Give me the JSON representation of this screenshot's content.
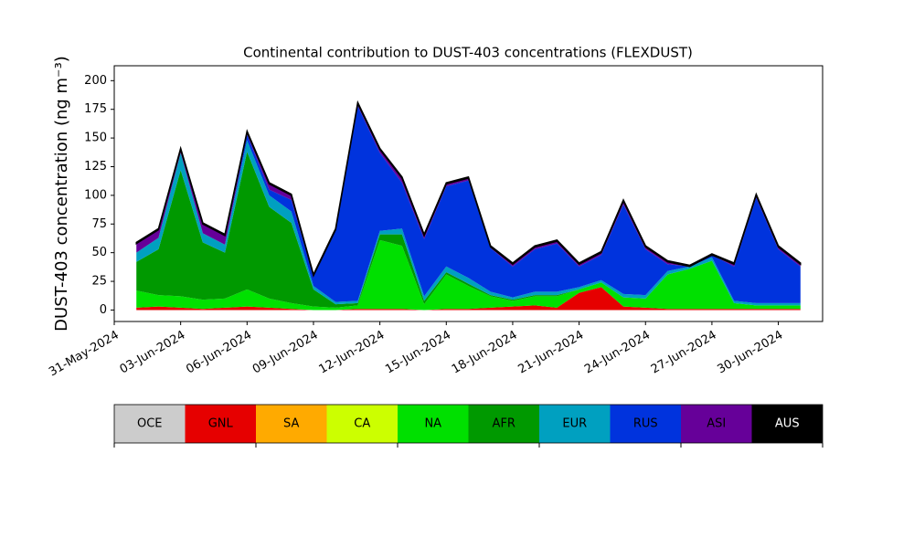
{
  "chart_data": {
    "type": "stacked_area",
    "title": "Continental contribution to DUST-403 concentrations (FLEXDUST)",
    "y_label": "DUST-403 concentration (ng m⁻³)",
    "x": [
      "2024-06-01",
      "2024-06-02",
      "2024-06-03",
      "2024-06-04",
      "2024-06-05",
      "2024-06-06",
      "2024-06-07",
      "2024-06-08",
      "2024-06-09",
      "2024-06-10",
      "2024-06-11",
      "2024-06-12",
      "2024-06-13",
      "2024-06-14",
      "2024-06-15",
      "2024-06-16",
      "2024-06-17",
      "2024-06-18",
      "2024-06-19",
      "2024-06-20",
      "2024-06-21",
      "2024-06-22",
      "2024-06-23",
      "2024-06-24",
      "2024-06-25",
      "2024-06-26",
      "2024-06-27",
      "2024-06-28",
      "2024-06-29",
      "2024-06-30",
      "2024-07-01"
    ],
    "xlim": [
      "2024-05-31",
      "2024-07-02"
    ],
    "xticks": [
      {
        "value": "2024-05-31",
        "label": "31-May-2024"
      },
      {
        "value": "2024-06-03",
        "label": "03-Jun-2024"
      },
      {
        "value": "2024-06-06",
        "label": "06-Jun-2024"
      },
      {
        "value": "2024-06-09",
        "label": "09-Jun-2024"
      },
      {
        "value": "2024-06-12",
        "label": "12-Jun-2024"
      },
      {
        "value": "2024-06-15",
        "label": "15-Jun-2024"
      },
      {
        "value": "2024-06-18",
        "label": "18-Jun-2024"
      },
      {
        "value": "2024-06-21",
        "label": "21-Jun-2024"
      },
      {
        "value": "2024-06-24",
        "label": "24-Jun-2024"
      },
      {
        "value": "2024-06-27",
        "label": "27-Jun-2024"
      },
      {
        "value": "2024-06-30",
        "label": "30-Jun-2024"
      }
    ],
    "ylim": [
      -10,
      213
    ],
    "yticks": [
      0,
      25,
      50,
      75,
      100,
      125,
      150,
      175,
      200
    ],
    "series": [
      {
        "name": "OCE",
        "color": "#cccccc",
        "values": [
          0,
          0,
          0,
          0,
          0,
          0,
          0,
          0,
          0,
          0,
          0,
          0,
          0,
          0,
          0,
          0,
          0,
          0,
          0,
          0,
          0,
          0,
          0,
          0,
          0,
          0,
          0,
          0,
          0,
          0,
          0
        ]
      },
      {
        "name": "GNL",
        "color": "#e60000",
        "values": [
          2,
          3,
          2,
          1,
          2,
          3,
          2,
          1,
          0,
          0,
          1,
          1,
          1,
          0,
          1,
          1,
          2,
          3,
          4,
          2,
          15,
          20,
          3,
          2,
          1,
          1,
          1,
          1,
          1,
          1,
          1
        ]
      },
      {
        "name": "SA",
        "color": "#ffaa00",
        "values": [
          0,
          0,
          0,
          0,
          0,
          0,
          0,
          0,
          0,
          0,
          0,
          0,
          0,
          0,
          0,
          0,
          0,
          0,
          0,
          0,
          0,
          0,
          0,
          0,
          0,
          0,
          0,
          0,
          0,
          0,
          0
        ]
      },
      {
        "name": "CA",
        "color": "#ccff00",
        "values": [
          0,
          0,
          0,
          0,
          0,
          0,
          0,
          0,
          0,
          0,
          0,
          0,
          0,
          0,
          0,
          0,
          0,
          0,
          0,
          0,
          0,
          0,
          0,
          0,
          0,
          0,
          0,
          0,
          0,
          0,
          0
        ]
      },
      {
        "name": "NA",
        "color": "#00e000",
        "values": [
          15,
          10,
          10,
          8,
          8,
          15,
          8,
          5,
          3,
          2,
          3,
          60,
          55,
          5,
          30,
          20,
          10,
          5,
          8,
          10,
          3,
          4,
          8,
          8,
          30,
          35,
          42,
          5,
          3,
          3,
          3
        ]
      },
      {
        "name": "AFR",
        "color": "#009900",
        "values": [
          25,
          40,
          110,
          50,
          40,
          120,
          80,
          70,
          15,
          3,
          2,
          5,
          10,
          3,
          2,
          2,
          1,
          1,
          1,
          1,
          0,
          0,
          0,
          0,
          0,
          0,
          0,
          0,
          0,
          0,
          0
        ]
      },
      {
        "name": "EUR",
        "color": "#00a0c0",
        "values": [
          8,
          10,
          15,
          8,
          7,
          10,
          10,
          10,
          3,
          2,
          2,
          3,
          5,
          4,
          5,
          5,
          3,
          2,
          3,
          3,
          2,
          2,
          3,
          3,
          3,
          2,
          3,
          2,
          2,
          2,
          2
        ]
      },
      {
        "name": "RUS",
        "color": "#0033dd",
        "values": [
          0,
          0,
          0,
          0,
          0,
          5,
          5,
          10,
          8,
          62,
          170,
          68,
          40,
          50,
          70,
          85,
          38,
          27,
          37,
          42,
          18,
          22,
          78,
          40,
          6,
          0,
          2,
          30,
          92,
          47,
          32
        ]
      },
      {
        "name": "ASI",
        "color": "#660099",
        "values": [
          8,
          7,
          3,
          8,
          8,
          2,
          5,
          4,
          1,
          1,
          2,
          3,
          4,
          3,
          2,
          2,
          1,
          2,
          2,
          2,
          2,
          2,
          3,
          2,
          2,
          0,
          0,
          2,
          2,
          2,
          2
        ]
      },
      {
        "name": "AUS",
        "color": "#000000",
        "values": [
          1,
          1,
          1,
          1,
          1,
          1,
          1,
          1,
          1,
          1,
          1,
          1,
          1,
          1,
          1,
          1,
          1,
          1,
          1,
          1,
          1,
          1,
          1,
          1,
          1,
          1,
          1,
          1,
          1,
          1,
          1
        ]
      }
    ]
  }
}
